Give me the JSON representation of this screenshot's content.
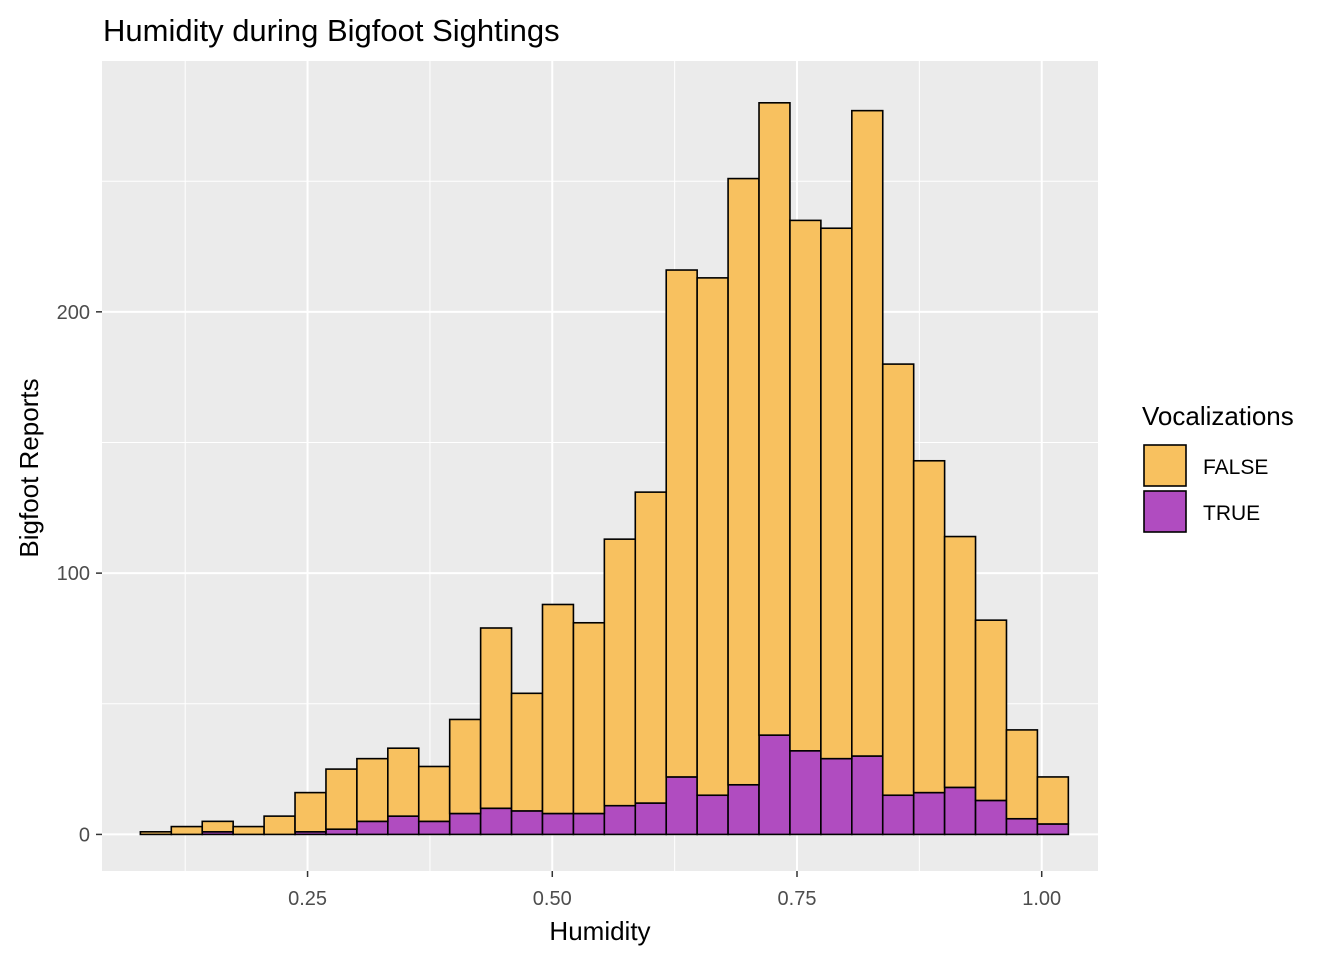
{
  "chart_data": {
    "type": "histogram",
    "stacked": true,
    "title": "Humidity during Bigfoot Sightings",
    "xlabel": "Humidity",
    "ylabel": "Bigfoot Reports",
    "xlim": [
      0.04,
      1.0575
    ],
    "ylim": [
      -14,
      296
    ],
    "x_ticks": [
      0.25,
      0.5,
      0.75,
      1.0
    ],
    "x_tick_labels": [
      "0.25",
      "0.50",
      "0.75",
      "1.00"
    ],
    "y_ticks": [
      0,
      100,
      200
    ],
    "y_tick_labels": [
      "0",
      "100",
      "200"
    ],
    "grid": true,
    "bin_width": 0.0316,
    "bins_start": [
      0.0792,
      0.1108,
      0.1424,
      0.174,
      0.2056,
      0.2372,
      0.2688,
      0.3004,
      0.332,
      0.3636,
      0.3952,
      0.4268,
      0.4584,
      0.49,
      0.5216,
      0.5532,
      0.5848,
      0.6164,
      0.648,
      0.6796,
      0.7112,
      0.7428,
      0.7744,
      0.806,
      0.8376,
      0.8692,
      0.9008,
      0.9324,
      0.964,
      0.9956
    ],
    "legend": {
      "title": "Vocalizations",
      "position": "right"
    },
    "series": [
      {
        "name": "TRUE",
        "color": "#b04cc0",
        "values": [
          0,
          0,
          1,
          0,
          0,
          1,
          2,
          5,
          7,
          5,
          8,
          10,
          9,
          8,
          8,
          11,
          12,
          22,
          15,
          19,
          38,
          32,
          29,
          30,
          15,
          16,
          18,
          13,
          6,
          4
        ]
      },
      {
        "name": "FALSE",
        "color": "#f8c15f",
        "values": [
          1,
          3,
          4,
          3,
          7,
          15,
          23,
          24,
          26,
          21,
          36,
          69,
          45,
          80,
          73,
          102,
          119,
          194,
          198,
          232,
          242,
          203,
          203,
          247,
          165,
          127,
          96,
          69,
          34,
          18
        ]
      }
    ]
  }
}
